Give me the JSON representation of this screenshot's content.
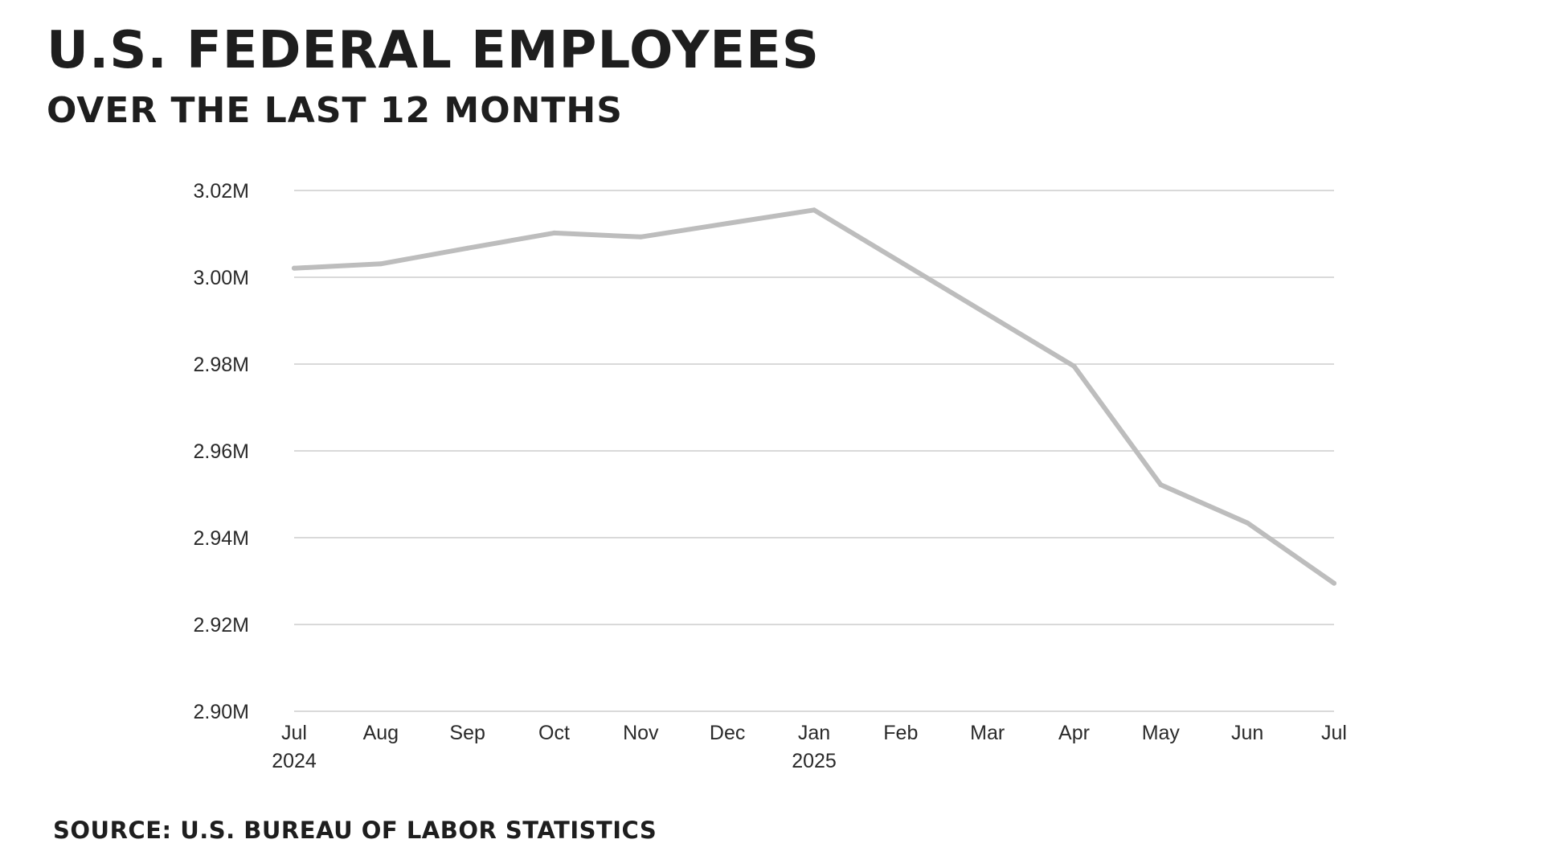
{
  "title": "U.S. Federal Employees",
  "subtitle": "Over the last 12 months",
  "source": "Source: U.S. Bureau of Labor Statistics",
  "colors": {
    "line": "#bdbdbd",
    "grid": "#d9d9d9",
    "text": "#1e1e1e"
  },
  "chart_data": {
    "type": "line",
    "title": "U.S. Federal Employees",
    "subtitle": "Over the last 12 months",
    "xlabel": "",
    "ylabel": "",
    "x": [
      "Jul 2024",
      "Aug 2024",
      "Sep 2024",
      "Oct 2024",
      "Nov 2024",
      "Dec 2024",
      "Jan 2025",
      "Feb 2025",
      "Mar 2025",
      "Apr 2025",
      "May 2025",
      "Jun 2025",
      "Jul 2025"
    ],
    "x_tick_labels": [
      {
        "month": "Jul",
        "year": "2024"
      },
      {
        "month": "Aug",
        "year": ""
      },
      {
        "month": "Sep",
        "year": ""
      },
      {
        "month": "Oct",
        "year": ""
      },
      {
        "month": "Nov",
        "year": ""
      },
      {
        "month": "Dec",
        "year": ""
      },
      {
        "month": "Jan",
        "year": "2025"
      },
      {
        "month": "Feb",
        "year": ""
      },
      {
        "month": "Mar",
        "year": ""
      },
      {
        "month": "Apr",
        "year": ""
      },
      {
        "month": "May",
        "year": ""
      },
      {
        "month": "Jun",
        "year": ""
      },
      {
        "month": "Jul",
        "year": ""
      }
    ],
    "series": [
      {
        "values": [
          3.0021,
          3.0031,
          3.0067,
          3.0102,
          3.0093,
          3.0124,
          3.0155,
          null,
          null,
          2.9795,
          2.9522,
          2.9434,
          2.9295
        ]
      }
    ],
    "y_ticks": [
      {
        "value": 2.9,
        "label": "2.90M"
      },
      {
        "value": 2.92,
        "label": "2.92M"
      },
      {
        "value": 2.94,
        "label": "2.94M"
      },
      {
        "value": 2.96,
        "label": "2.96M"
      },
      {
        "value": 2.98,
        "label": "2.98M"
      },
      {
        "value": 3.0,
        "label": "3.00M"
      },
      {
        "value": 3.02,
        "label": "3.02M"
      }
    ],
    "ylim": [
      2.9,
      3.02
    ],
    "units": "millions",
    "grid": true,
    "legend": "none"
  }
}
